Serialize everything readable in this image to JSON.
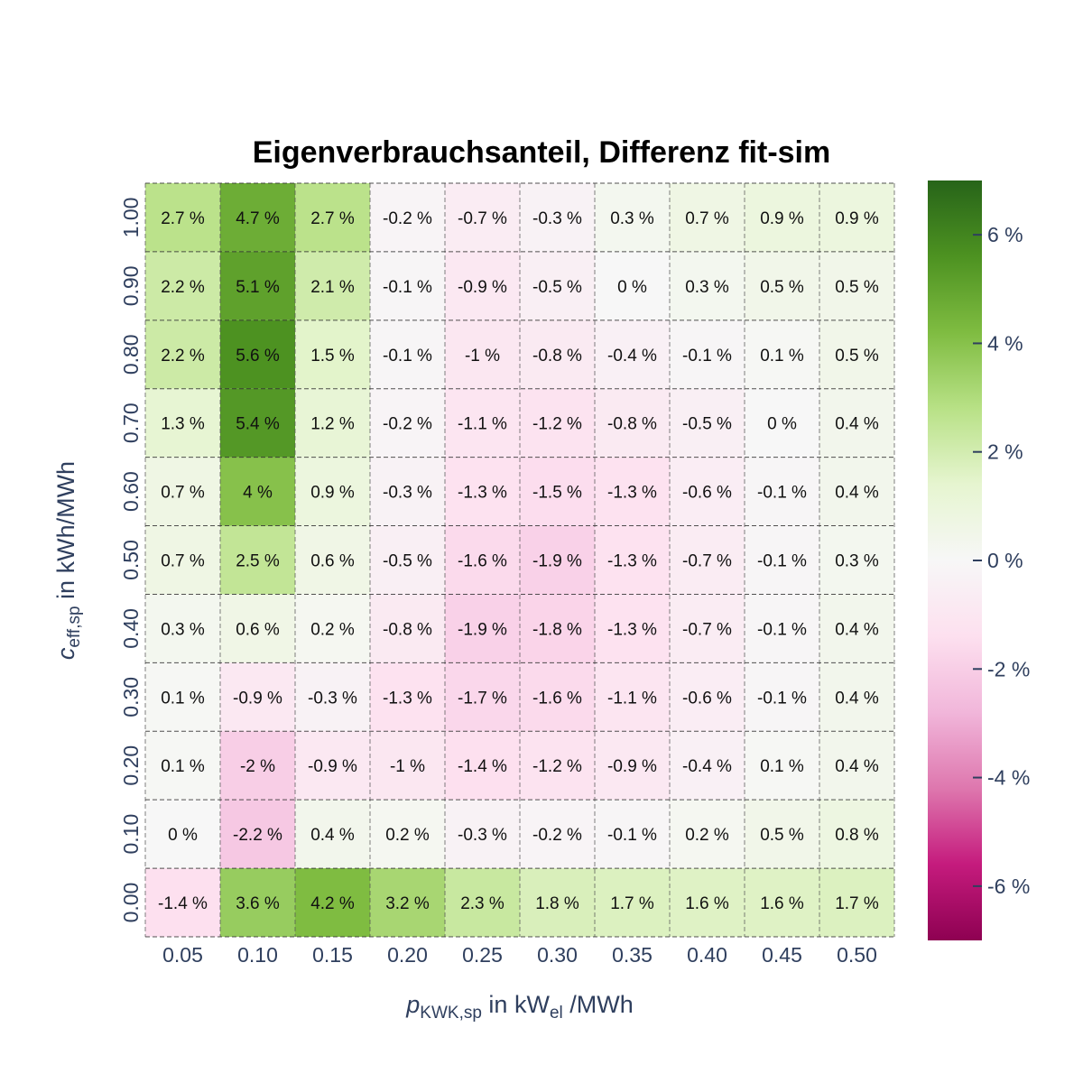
{
  "chart_data": {
    "type": "heatmap",
    "title": "Eigenverbrauchsanteil, Differenz fit-sim",
    "xlabel": {
      "symbol": "p",
      "subscript": "KWK,sp",
      "middle": " in kW",
      "unit_subscript": "el",
      "suffix": " /MWh"
    },
    "ylabel": {
      "symbol": "c",
      "subscript": "eff,sp",
      "suffix": " in kWh/MWh"
    },
    "x_ticks": [
      "0.05",
      "0.10",
      "0.15",
      "0.20",
      "0.25",
      "0.30",
      "0.35",
      "0.40",
      "0.45",
      "0.50"
    ],
    "y_ticks": [
      "1.00",
      "0.90",
      "0.80",
      "0.70",
      "0.60",
      "0.50",
      "0.40",
      "0.30",
      "0.20",
      "0.10",
      "0.00"
    ],
    "values": [
      [
        2.7,
        4.7,
        2.7,
        -0.2,
        -0.7,
        -0.3,
        0.3,
        0.7,
        0.9,
        0.9
      ],
      [
        2.2,
        5.1,
        2.1,
        -0.1,
        -0.9,
        -0.5,
        0,
        0.3,
        0.5,
        0.5
      ],
      [
        2.2,
        5.6,
        1.5,
        -0.1,
        -1,
        -0.8,
        -0.4,
        -0.1,
        0.1,
        0.5
      ],
      [
        1.3,
        5.4,
        1.2,
        -0.2,
        -1.1,
        -1.2,
        -0.8,
        -0.5,
        0,
        0.4
      ],
      [
        0.7,
        4,
        0.9,
        -0.3,
        -1.3,
        -1.5,
        -1.3,
        -0.6,
        -0.1,
        0.4
      ],
      [
        0.7,
        2.5,
        0.6,
        -0.5,
        -1.6,
        -1.9,
        -1.3,
        -0.7,
        -0.1,
        0.3
      ],
      [
        0.3,
        0.6,
        0.2,
        -0.8,
        -1.9,
        -1.8,
        -1.3,
        -0.7,
        -0.1,
        0.4
      ],
      [
        0.1,
        -0.9,
        -0.3,
        -1.3,
        -1.7,
        -1.6,
        -1.1,
        -0.6,
        -0.1,
        0.4
      ],
      [
        0.1,
        -2,
        -0.9,
        -1,
        -1.4,
        -1.2,
        -0.9,
        -0.4,
        0.1,
        0.4
      ],
      [
        0,
        -2.2,
        0.4,
        0.2,
        -0.3,
        -0.2,
        -0.1,
        0.2,
        0.5,
        0.8
      ],
      [
        -1.4,
        3.6,
        4.2,
        3.2,
        2.3,
        1.8,
        1.7,
        1.6,
        1.6,
        1.7
      ]
    ],
    "value_suffix": " %",
    "colorscale": {
      "name": "PiYG",
      "range": [
        -7,
        7
      ],
      "stops": [
        "#8e0152",
        "#c51b7d",
        "#de77ae",
        "#f1b6da",
        "#fde0ef",
        "#f7f7f7",
        "#e6f5d0",
        "#b8e186",
        "#7fbc41",
        "#4d9221",
        "#276419"
      ]
    },
    "colorbar_ticks": [
      {
        "value": 6,
        "label": "6 %"
      },
      {
        "value": 4,
        "label": "4 %"
      },
      {
        "value": 2,
        "label": "2 %"
      },
      {
        "value": 0,
        "label": "0 %"
      },
      {
        "value": -2,
        "label": "-2 %"
      },
      {
        "value": -4,
        "label": "-4 %"
      },
      {
        "value": -6,
        "label": "-6 %"
      }
    ]
  }
}
